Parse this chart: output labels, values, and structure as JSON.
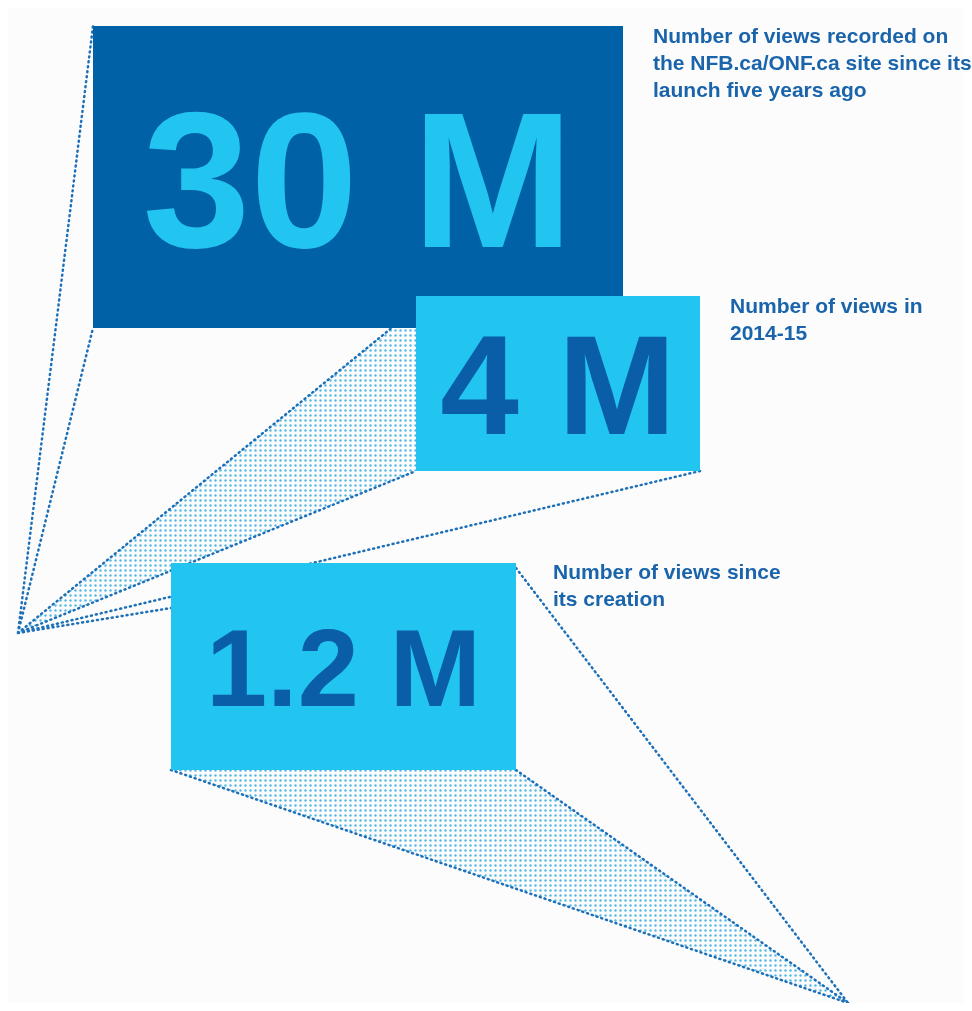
{
  "chart_data": {
    "type": "other",
    "categories": [
      "Number of views recorded on the NFB.ca/ONF.ca site since its launch five years ago",
      "Number of views in 2014-15",
      "Number of views since its creation"
    ],
    "values": [
      30,
      4,
      1.2
    ],
    "value_labels": [
      "30 M",
      "4 M",
      "1.2 M"
    ],
    "colors": [
      "#0061a6",
      "#22c4f0",
      "#22c4f0"
    ]
  }
}
